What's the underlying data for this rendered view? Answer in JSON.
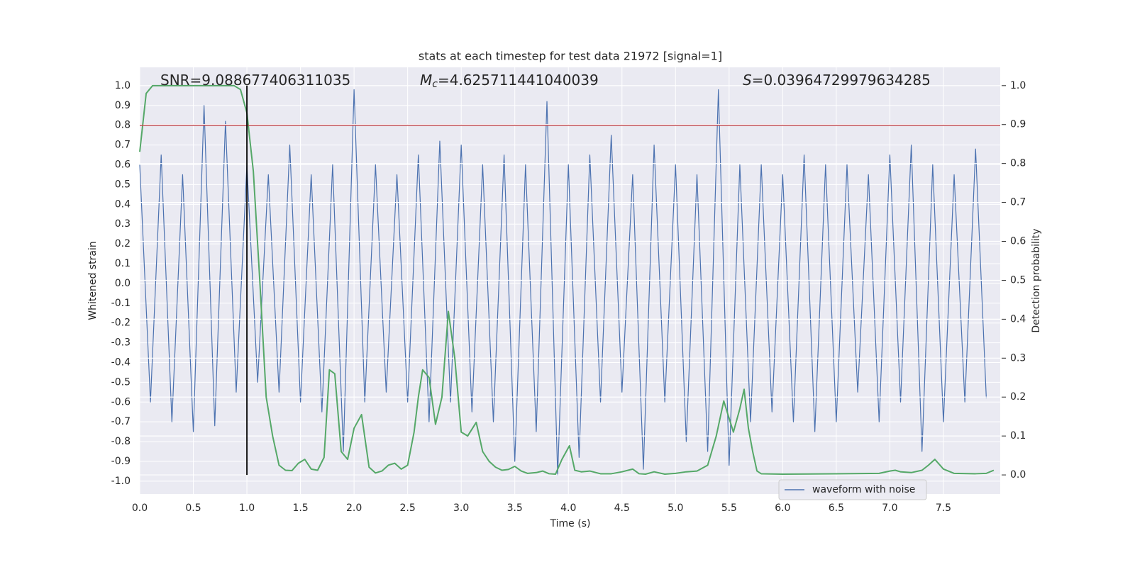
{
  "chart_data": {
    "type": "line",
    "title": "stats at each timestep for test data 21972 [signal=1]",
    "x_label": "Time (s)",
    "y_label": "Whitened strain",
    "y2_label": "Detection probability",
    "annotations": [
      {
        "text": "SNR=9.088677406311035"
      },
      {
        "symbol": "M",
        "sub": "c",
        "text": "=4.625711441040039"
      },
      {
        "symbol": "S",
        "text": "=0.03964729979634285"
      }
    ],
    "xlim": [
      0,
      8.03
    ],
    "ylim": [
      -1.065,
      1.093
    ],
    "y2lim": [
      -0.049,
      1.047
    ],
    "xticks": [
      {
        "value": 0,
        "label": "0.0"
      },
      0.5,
      {
        "value": 1,
        "label": "1.0"
      },
      1.5,
      {
        "value": 2,
        "label": "2.0"
      },
      2.5,
      {
        "value": 3,
        "label": "3.0"
      },
      3.5,
      {
        "value": 4,
        "label": "4.0"
      },
      4.5,
      {
        "value": 5,
        "label": "5.0"
      },
      5.5,
      {
        "value": 6,
        "label": "6.0"
      },
      6.5,
      {
        "value": 7,
        "label": "7.0"
      },
      7.5
    ],
    "yticks": [
      {
        "value": -1,
        "label": "-1.0"
      },
      -0.9,
      -0.8,
      -0.7,
      -0.6,
      -0.5,
      -0.4,
      -0.3,
      -0.2,
      -0.1,
      {
        "value": 0,
        "label": "0.0"
      },
      0.1,
      0.2,
      0.3,
      0.4,
      0.5,
      0.6,
      0.7,
      0.8,
      0.9,
      {
        "value": 1,
        "label": "1.0"
      }
    ],
    "y2ticks": [
      {
        "value": 0,
        "label": "0.0"
      },
      0.1,
      0.2,
      0.3,
      0.4,
      0.5,
      0.6,
      0.7,
      0.8,
      0.9,
      {
        "value": 1,
        "label": "1.0"
      }
    ],
    "grid": true,
    "legend": "lower right",
    "series": [
      {
        "name": "waveform with noise",
        "color": "#4c72b0",
        "x": [
          0,
          0.1,
          0.2,
          0.3,
          0.4,
          0.5,
          0.6,
          0.7,
          0.8,
          0.9,
          1.0,
          1.1,
          1.2,
          1.3,
          1.4,
          1.5,
          1.6,
          1.7,
          1.8,
          1.9,
          2.0,
          2.1,
          2.2,
          2.3,
          2.4,
          2.5,
          2.6,
          2.7,
          2.8,
          2.9,
          3.0,
          3.1,
          3.2,
          3.3,
          3.4,
          3.5,
          3.6,
          3.7,
          3.8,
          3.9,
          4.0,
          4.1,
          4.2,
          4.3,
          4.4,
          4.5,
          4.6,
          4.7,
          4.8,
          4.9,
          5.0,
          5.1,
          5.2,
          5.3,
          5.4,
          5.5,
          5.6,
          5.7,
          5.8,
          5.9,
          6.0,
          6.1,
          6.2,
          6.3,
          6.4,
          6.5,
          6.6,
          6.7,
          6.8,
          6.9,
          7.0,
          7.1,
          7.2,
          7.3,
          7.4,
          7.5,
          7.6,
          7.7,
          7.8,
          7.9
        ],
        "values": [
          0.6,
          -0.6,
          0.65,
          -0.7,
          0.55,
          -0.75,
          0.9,
          -0.72,
          0.82,
          -0.55,
          0.6,
          -0.5,
          0.55,
          -0.55,
          0.7,
          -0.6,
          0.55,
          -0.65,
          0.6,
          -0.85,
          0.98,
          -0.6,
          0.6,
          -0.55,
          0.55,
          -0.6,
          0.65,
          -0.7,
          0.72,
          -0.6,
          0.7,
          -0.65,
          0.6,
          -0.7,
          0.65,
          -0.9,
          0.6,
          -0.75,
          0.92,
          -0.97,
          0.6,
          -0.88,
          0.65,
          -0.6,
          0.75,
          -0.55,
          0.55,
          -0.94,
          0.7,
          -0.6,
          0.6,
          -0.8,
          0.55,
          -0.85,
          0.98,
          -0.92,
          0.6,
          -0.7,
          0.6,
          -0.65,
          0.55,
          -0.7,
          0.65,
          -0.75,
          0.6,
          -0.7,
          0.6,
          -0.55,
          0.55,
          -0.7,
          0.65,
          -0.6,
          0.7,
          -0.85,
          0.6,
          -0.7,
          0.55,
          -0.6,
          0.68,
          -0.58
        ]
      },
      {
        "color": "#55a868",
        "axis": "y2",
        "x": [
          0,
          0.06,
          0.12,
          0.2,
          0.4,
          0.6,
          0.8,
          0.88,
          0.94,
          1.0,
          1.06,
          1.12,
          1.18,
          1.24,
          1.3,
          1.36,
          1.42,
          1.48,
          1.54,
          1.6,
          1.66,
          1.72,
          1.77,
          1.82,
          1.88,
          1.94,
          2.0,
          2.07,
          2.14,
          2.2,
          2.26,
          2.32,
          2.38,
          2.44,
          2.5,
          2.56,
          2.6,
          2.64,
          2.7,
          2.76,
          2.82,
          2.88,
          2.94,
          3.0,
          3.06,
          3.14,
          3.2,
          3.26,
          3.32,
          3.38,
          3.44,
          3.5,
          3.56,
          3.62,
          3.7,
          3.76,
          3.82,
          3.88,
          3.94,
          4.01,
          4.06,
          4.12,
          4.2,
          4.3,
          4.4,
          4.5,
          4.6,
          4.66,
          4.72,
          4.8,
          4.9,
          5.0,
          5.1,
          5.2,
          5.3,
          5.38,
          5.45,
          5.54,
          5.6,
          5.64,
          5.68,
          5.72,
          5.76,
          5.8,
          6.0,
          6.5,
          6.9,
          7.0,
          7.05,
          7.1,
          7.2,
          7.3,
          7.36,
          7.42,
          7.5,
          7.6,
          7.8,
          7.9,
          7.97
        ],
        "values": [
          0.83,
          0.98,
          1.0,
          1.0,
          1.0,
          1.0,
          1.0,
          1.0,
          0.99,
          0.93,
          0.78,
          0.5,
          0.2,
          0.1,
          0.025,
          0.012,
          0.011,
          0.03,
          0.04,
          0.015,
          0.012,
          0.045,
          0.27,
          0.26,
          0.06,
          0.04,
          0.12,
          0.155,
          0.02,
          0.005,
          0.01,
          0.025,
          0.03,
          0.015,
          0.025,
          0.11,
          0.2,
          0.27,
          0.25,
          0.13,
          0.2,
          0.42,
          0.3,
          0.11,
          0.1,
          0.135,
          0.06,
          0.035,
          0.02,
          0.012,
          0.014,
          0.022,
          0.01,
          0.004,
          0.006,
          0.01,
          0.003,
          0.002,
          0.04,
          0.075,
          0.012,
          0.008,
          0.01,
          0.003,
          0.003,
          0.008,
          0.015,
          0.003,
          0.002,
          0.008,
          0.002,
          0.004,
          0.008,
          0.01,
          0.025,
          0.1,
          0.19,
          0.11,
          0.17,
          0.22,
          0.12,
          0.06,
          0.01,
          0.003,
          0.002,
          0.003,
          0.004,
          0.01,
          0.012,
          0.008,
          0.006,
          0.012,
          0.025,
          0.04,
          0.015,
          0.004,
          0.003,
          0.004,
          0.012
        ]
      }
    ],
    "hline": {
      "value": 0.8,
      "color": "#c44e52"
    },
    "vline": {
      "x": 1.0,
      "axis": "y2",
      "ylim": [
        0,
        1
      ],
      "color": "#000000"
    }
  }
}
